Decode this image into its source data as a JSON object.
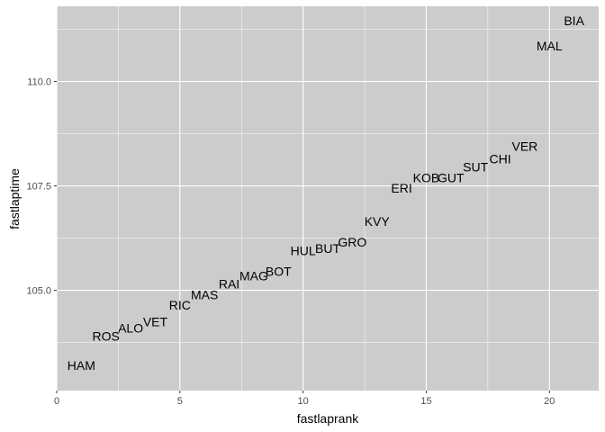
{
  "chart_data": {
    "type": "scatter",
    "title": "",
    "xlabel": "fastlaprank",
    "ylabel": "fastlaptime",
    "xlim": [
      0,
      22
    ],
    "ylim": [
      102.6,
      111.8
    ],
    "x_ticks": [
      0,
      5,
      10,
      15,
      20
    ],
    "x_tick_labels": [
      "0",
      "5",
      "10",
      "15",
      "20"
    ],
    "y_ticks": [
      105.0,
      107.5,
      110.0
    ],
    "y_tick_labels": [
      "105.0",
      "107.5",
      "110.0"
    ],
    "grid": true,
    "legend": "none",
    "points": [
      {
        "x": 1,
        "y": 103.2,
        "label": "HAM"
      },
      {
        "x": 2,
        "y": 103.9,
        "label": "ROS"
      },
      {
        "x": 3,
        "y": 104.1,
        "label": "ALO"
      },
      {
        "x": 4,
        "y": 104.25,
        "label": "VET"
      },
      {
        "x": 5,
        "y": 104.65,
        "label": "RIC"
      },
      {
        "x": 6,
        "y": 104.9,
        "label": "MAS"
      },
      {
        "x": 7,
        "y": 105.15,
        "label": "RAI"
      },
      {
        "x": 8,
        "y": 105.35,
        "label": "MAG"
      },
      {
        "x": 9,
        "y": 105.45,
        "label": "BOT"
      },
      {
        "x": 10,
        "y": 105.95,
        "label": "HUL"
      },
      {
        "x": 11,
        "y": 106.0,
        "label": "BUT"
      },
      {
        "x": 12,
        "y": 106.15,
        "label": "GRO"
      },
      {
        "x": 13,
        "y": 106.65,
        "label": "KVY"
      },
      {
        "x": 14,
        "y": 107.45,
        "label": "ERI"
      },
      {
        "x": 15,
        "y": 107.7,
        "label": "KOB"
      },
      {
        "x": 16,
        "y": 107.7,
        "label": "GUT"
      },
      {
        "x": 17,
        "y": 107.95,
        "label": "SUT"
      },
      {
        "x": 18,
        "y": 108.15,
        "label": "CHI"
      },
      {
        "x": 19,
        "y": 108.45,
        "label": "VER"
      },
      {
        "x": 20,
        "y": 110.85,
        "label": "MAL"
      },
      {
        "x": 21,
        "y": 111.45,
        "label": "BIA"
      }
    ]
  },
  "colors": {
    "panel_background": "#cccccc",
    "grid_major": "#ffffff",
    "text": "#000000",
    "tick_text": "#4d4d4d"
  }
}
